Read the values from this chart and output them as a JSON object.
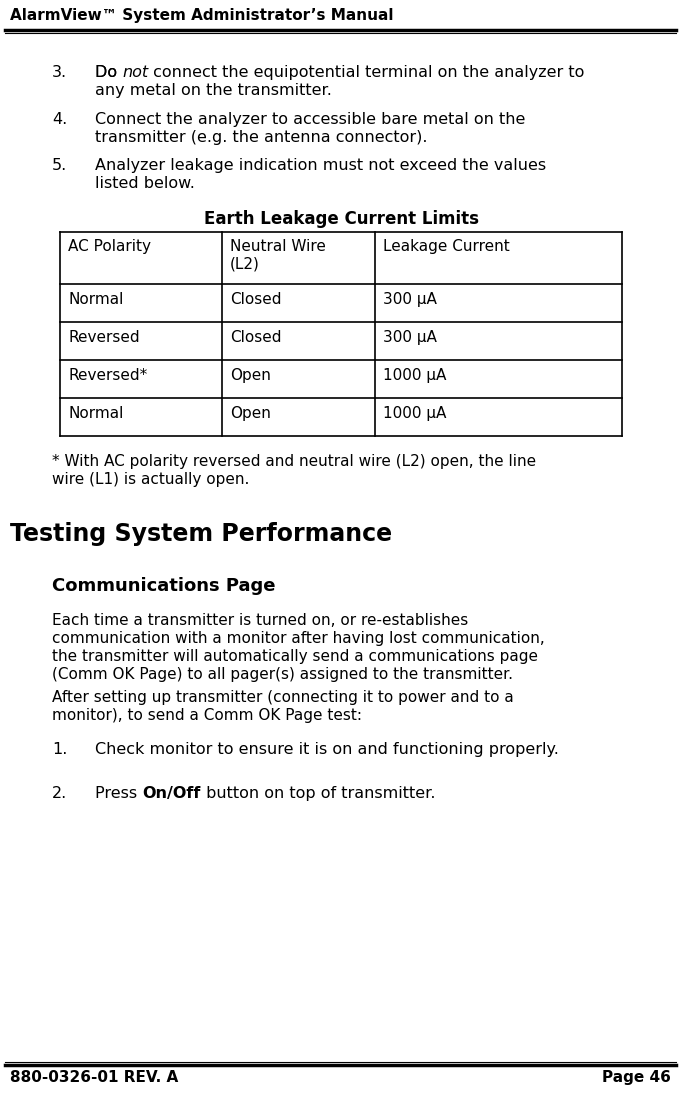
{
  "header_title": "AlarmView™ System Administrator’s Manual",
  "footer_left": "880-0326-01 REV. A",
  "footer_right": "Page 46",
  "table_title": "Earth Leakage Current Limits",
  "table_headers": [
    "AC Polarity",
    "Neutral Wire\n(L2)",
    "Leakage Current"
  ],
  "table_rows": [
    [
      "Normal",
      "Closed",
      "300 µA"
    ],
    [
      "Reversed",
      "Closed",
      "300 µA"
    ],
    [
      "Reversed*",
      "Open",
      "1000 µA"
    ],
    [
      "Normal",
      "Open",
      "1000 µA"
    ]
  ],
  "footnote_line1": "* With AC polarity reversed and neutral wire (L2) open, the line",
  "footnote_line2": "wire (L1) is actually open.",
  "section_title": "Testing System Performance",
  "subsection_title": "Communications Page",
  "para1_lines": [
    "Each time a transmitter is turned on, or re-establishes",
    "communication with a monitor after having lost communication,",
    "the transmitter will automatically send a communications page",
    "(Comm OK Page) to all pager(s) assigned to the transmitter."
  ],
  "para2_lines": [
    "After setting up transmitter (connecting it to power and to a",
    "monitor), to send a Comm OK Page test:"
  ],
  "item3_line1_pre": "Do ",
  "item3_line1_italic": "not",
  "item3_line1_post": " connect the equipotential terminal on the analyzer to",
  "item3_line2": "any metal on the transmitter.",
  "item4_line1": "Connect the analyzer to accessible bare metal on the",
  "item4_line2": "transmitter (e.g. the antenna connector).",
  "item5_line1": "Analyzer leakage indication must not exceed the values",
  "item5_line2": "listed below.",
  "item1_text": "Check monitor to ensure it is on and functioning properly.",
  "item2_pre": "Press ",
  "item2_bold": "On/Off",
  "item2_post": " button on top of transmitter.",
  "bg_color": "#ffffff",
  "text_color": "#000000"
}
